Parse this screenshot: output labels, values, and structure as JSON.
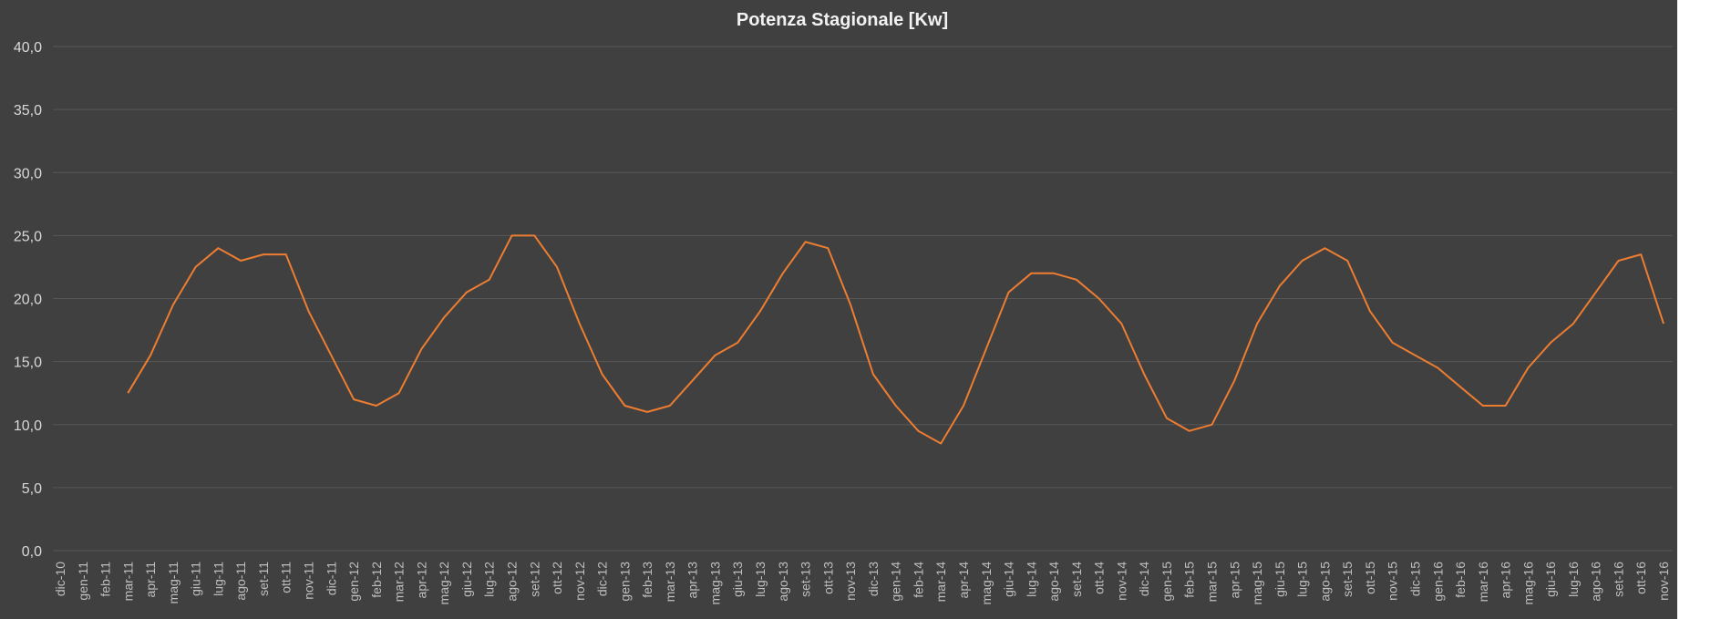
{
  "chart_data": {
    "type": "line",
    "title": "Potenza Stagionale  [Kw]",
    "categories": [
      "dic-10",
      "gen-11",
      "feb-11",
      "mar-11",
      "apr-11",
      "mag-11",
      "giu-11",
      "lug-11",
      "ago-11",
      "set-11",
      "ott-11",
      "nov-11",
      "dic-11",
      "gen-12",
      "feb-12",
      "mar-12",
      "apr-12",
      "mag-12",
      "giu-12",
      "lug-12",
      "ago-12",
      "set-12",
      "ott-12",
      "nov-12",
      "dic-12",
      "gen-13",
      "feb-13",
      "mar-13",
      "apr-13",
      "mag-13",
      "giu-13",
      "lug-13",
      "ago-13",
      "set-13",
      "ott-13",
      "nov-13",
      "dic-13",
      "gen-14",
      "feb-14",
      "mar-14",
      "apr-14",
      "mag-14",
      "giu-14",
      "lug-14",
      "ago-14",
      "set-14",
      "ott-14",
      "nov-14",
      "dic-14",
      "gen-15",
      "feb-15",
      "mar-15",
      "apr-15",
      "mag-15",
      "giu-15",
      "lug-15",
      "ago-15",
      "set-15",
      "ott-15",
      "nov-15",
      "dic-15",
      "gen-16",
      "feb-16",
      "mar-16",
      "apr-16",
      "mag-16",
      "giu-16",
      "lug-16",
      "ago-16",
      "set-16",
      "ott-16",
      "nov-16"
    ],
    "series": [
      {
        "name": "Potenza Stagionale",
        "color": "#ed7d31",
        "values": [
          null,
          null,
          null,
          12.5,
          15.5,
          19.5,
          22.5,
          24,
          23,
          23.5,
          23.5,
          19,
          15.5,
          12,
          11.5,
          12.5,
          16,
          18.5,
          20.5,
          21.5,
          25,
          25,
          22.5,
          18,
          14,
          11.5,
          11,
          11.5,
          13.5,
          15.5,
          16.5,
          19,
          22,
          24.5,
          24,
          19.5,
          14,
          11.5,
          9.5,
          8.5,
          11.5,
          16,
          20.5,
          22,
          22,
          21.5,
          20,
          18,
          14,
          10.5,
          9.5,
          10,
          13.5,
          18,
          21,
          23,
          24,
          23,
          19,
          16.5,
          15.5,
          14.5,
          13,
          11.5,
          11.5,
          14.5,
          16.5,
          18,
          20.5,
          23,
          23.5,
          18
        ]
      }
    ],
    "ylim": [
      0,
      40
    ],
    "yticks": [
      {
        "value": 0,
        "label": "0,0"
      },
      {
        "value": 5,
        "label": "5,0"
      },
      {
        "value": 10,
        "label": "10,0"
      },
      {
        "value": 15,
        "label": "15,0"
      },
      {
        "value": 20,
        "label": "20,0"
      },
      {
        "value": 25,
        "label": "25,0"
      },
      {
        "value": 30,
        "label": "30,0"
      },
      {
        "value": 35,
        "label": "35,0"
      },
      {
        "value": 40,
        "label": "40,0"
      }
    ],
    "grid": true
  }
}
